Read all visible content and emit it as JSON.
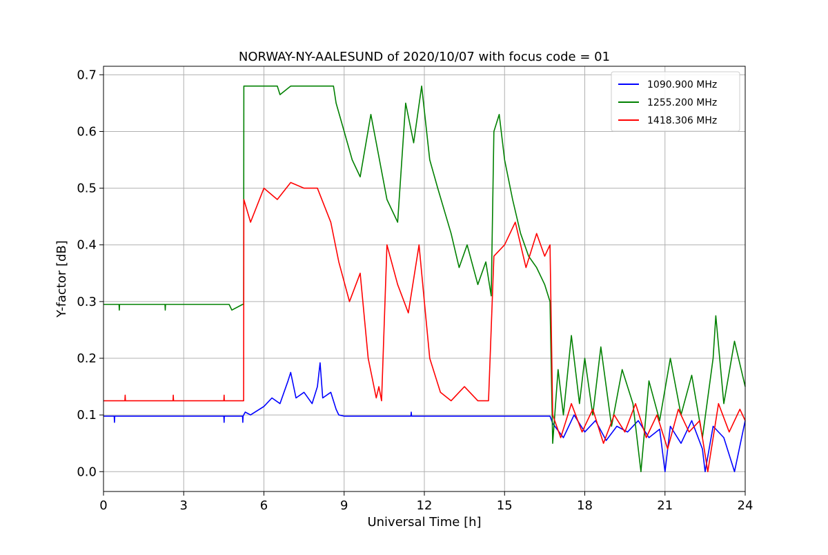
{
  "chart_data": {
    "type": "line",
    "title": "NORWAY-NY-AALESUND of 2020/10/07 with focus code = 01",
    "xlabel": "Universal Time [h]",
    "ylabel": "Y-factor [dB]",
    "xlim": [
      0,
      24
    ],
    "ylim": [
      -0.035,
      0.715
    ],
    "xticks": [
      0,
      3,
      6,
      9,
      12,
      15,
      18,
      21,
      24
    ],
    "xtick_labels": [
      "0",
      "3",
      "6",
      "9",
      "12",
      "15",
      "18",
      "21",
      "24"
    ],
    "yticks": [
      0.0,
      0.1,
      0.2,
      0.3,
      0.4,
      0.5,
      0.6,
      0.7
    ],
    "ytick_labels": [
      "0.0",
      "0.1",
      "0.2",
      "0.3",
      "0.4",
      "0.5",
      "0.6",
      "0.7"
    ],
    "grid": true,
    "legend_position": "top-right",
    "series": [
      {
        "name": "1090.900 MHz",
        "color": "#0000ff",
        "x": [
          0,
          0.4,
          0.41,
          0.42,
          4.5,
          4.51,
          4.52,
          5.2,
          5.21,
          5.22,
          5.3,
          5.5,
          6.0,
          6.3,
          6.6,
          6.9,
          7.0,
          7.2,
          7.5,
          7.8,
          8.0,
          8.1,
          8.2,
          8.5,
          8.7,
          8.8,
          9.0,
          9.5,
          11.5,
          11.51,
          11.52,
          16.7,
          16.8,
          17.2,
          17.6,
          18.0,
          18.4,
          18.8,
          19.2,
          19.6,
          20.0,
          20.4,
          20.8,
          21.0,
          21.2,
          21.6,
          22.0,
          22.4,
          22.5,
          22.8,
          23.2,
          23.6,
          24.0
        ],
        "values": [
          0.098,
          0.098,
          0.087,
          0.098,
          0.098,
          0.087,
          0.098,
          0.098,
          0.087,
          0.098,
          0.105,
          0.1,
          0.115,
          0.13,
          0.12,
          0.16,
          0.175,
          0.13,
          0.14,
          0.12,
          0.15,
          0.192,
          0.13,
          0.14,
          0.11,
          0.1,
          0.098,
          0.098,
          0.098,
          0.105,
          0.098,
          0.098,
          0.085,
          0.06,
          0.1,
          0.07,
          0.09,
          0.055,
          0.08,
          0.07,
          0.09,
          0.06,
          0.075,
          0.0,
          0.08,
          0.05,
          0.09,
          0.04,
          0.0,
          0.08,
          0.06,
          0.0,
          0.09
        ]
      },
      {
        "name": "1255.200 MHz",
        "color": "#008000",
        "x": [
          0,
          0.58,
          0.59,
          0.6,
          2.3,
          2.31,
          2.32,
          4.7,
          4.8,
          5.2,
          5.24,
          5.25,
          6.5,
          6.6,
          7.0,
          7.4,
          8.6,
          8.7,
          9.0,
          9.3,
          9.6,
          10.0,
          10.2,
          10.6,
          11.0,
          11.3,
          11.6,
          11.9,
          12.2,
          12.5,
          13.0,
          13.3,
          13.6,
          14.0,
          14.3,
          14.5,
          14.6,
          14.8,
          15.0,
          15.3,
          15.6,
          15.9,
          16.2,
          16.5,
          16.7,
          16.8,
          17.0,
          17.2,
          17.5,
          17.8,
          18.0,
          18.3,
          18.6,
          19.0,
          19.4,
          19.8,
          20.1,
          20.4,
          20.8,
          21.2,
          21.6,
          22.0,
          22.4,
          22.8,
          22.9,
          23.2,
          23.6,
          24.0
        ],
        "values": [
          0.295,
          0.295,
          0.285,
          0.295,
          0.295,
          0.285,
          0.295,
          0.295,
          0.285,
          0.295,
          0.295,
          0.68,
          0.68,
          0.665,
          0.68,
          0.68,
          0.68,
          0.65,
          0.6,
          0.55,
          0.52,
          0.63,
          0.58,
          0.48,
          0.44,
          0.65,
          0.58,
          0.68,
          0.55,
          0.5,
          0.42,
          0.36,
          0.4,
          0.33,
          0.37,
          0.31,
          0.6,
          0.63,
          0.55,
          0.48,
          0.42,
          0.38,
          0.36,
          0.33,
          0.3,
          0.05,
          0.18,
          0.1,
          0.24,
          0.12,
          0.2,
          0.1,
          0.22,
          0.08,
          0.18,
          0.12,
          0.0,
          0.16,
          0.09,
          0.2,
          0.1,
          0.17,
          0.06,
          0.2,
          0.275,
          0.12,
          0.23,
          0.15
        ]
      },
      {
        "name": "1418.306 MHz",
        "color": "#ff0000",
        "x": [
          0,
          0.8,
          0.81,
          0.82,
          2.6,
          2.61,
          2.62,
          4.5,
          4.51,
          4.52,
          5.24,
          5.25,
          5.5,
          6.0,
          6.5,
          7.0,
          7.5,
          8.0,
          8.5,
          8.8,
          9.2,
          9.6,
          9.9,
          10.2,
          10.3,
          10.4,
          10.6,
          11.0,
          11.4,
          11.8,
          12.0,
          12.2,
          12.6,
          13.0,
          13.5,
          14.0,
          14.4,
          14.6,
          15.0,
          15.4,
          15.8,
          16.2,
          16.5,
          16.7,
          16.8,
          17.1,
          17.5,
          17.9,
          18.3,
          18.7,
          19.1,
          19.5,
          19.9,
          20.3,
          20.7,
          21.1,
          21.5,
          21.9,
          22.3,
          22.6,
          23.0,
          23.4,
          23.8,
          24.0
        ],
        "values": [
          0.125,
          0.125,
          0.135,
          0.125,
          0.125,
          0.135,
          0.125,
          0.125,
          0.135,
          0.125,
          0.125,
          0.48,
          0.44,
          0.5,
          0.48,
          0.51,
          0.5,
          0.5,
          0.44,
          0.37,
          0.3,
          0.35,
          0.2,
          0.13,
          0.15,
          0.125,
          0.4,
          0.33,
          0.28,
          0.4,
          0.3,
          0.2,
          0.14,
          0.125,
          0.15,
          0.125,
          0.125,
          0.38,
          0.4,
          0.44,
          0.36,
          0.42,
          0.38,
          0.4,
          0.1,
          0.06,
          0.12,
          0.07,
          0.11,
          0.05,
          0.1,
          0.07,
          0.12,
          0.06,
          0.1,
          0.04,
          0.11,
          0.07,
          0.09,
          0.0,
          0.12,
          0.07,
          0.11,
          0.09
        ]
      }
    ]
  }
}
